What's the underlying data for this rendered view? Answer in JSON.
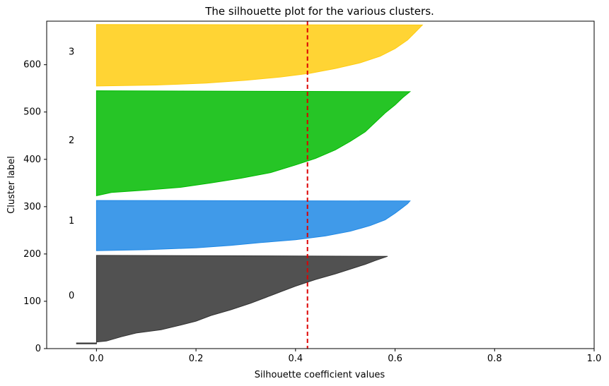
{
  "chart_data": {
    "type": "area",
    "title": "The silhouette plot for the various clusters.",
    "xlabel": "Silhouette coefficient values",
    "ylabel": "Cluster label",
    "xlim": [
      -0.1,
      1.0
    ],
    "ylim": [
      0,
      692
    ],
    "xticks": [
      0.0,
      0.2,
      0.4,
      0.6,
      0.8,
      1.0
    ],
    "xtick_labels": [
      "0.0",
      "0.2",
      "0.4",
      "0.6",
      "0.8",
      "1.0"
    ],
    "yticks": [
      0,
      100,
      200,
      300,
      400,
      500,
      600
    ],
    "ytick_labels": [
      "0",
      "100",
      "200",
      "300",
      "400",
      "500",
      "600"
    ],
    "grid": false,
    "average_silhouette": 0.424,
    "average_line_color": "#dd0000",
    "clusters": [
      {
        "label": "0",
        "color": "#333333",
        "label_x": -0.05,
        "label_y": 112,
        "y_lower": 10,
        "y_upper": 197,
        "profile": [
          [
            -0.04,
            10
          ],
          [
            -0.04,
            12
          ],
          [
            0.0,
            12
          ],
          [
            0.0,
            14
          ],
          [
            0.02,
            16
          ],
          [
            0.05,
            25
          ],
          [
            0.08,
            33
          ],
          [
            0.13,
            40
          ],
          [
            0.17,
            50
          ],
          [
            0.2,
            58
          ],
          [
            0.23,
            70
          ],
          [
            0.27,
            82
          ],
          [
            0.31,
            96
          ],
          [
            0.34,
            108
          ],
          [
            0.37,
            120
          ],
          [
            0.4,
            132
          ],
          [
            0.44,
            146
          ],
          [
            0.48,
            158
          ],
          [
            0.51,
            168
          ],
          [
            0.54,
            178
          ],
          [
            0.56,
            186
          ],
          [
            0.585,
            195
          ]
        ]
      },
      {
        "label": "1",
        "color": "#1f88e5",
        "label_x": -0.05,
        "label_y": 270,
        "y_lower": 207,
        "y_upper": 313,
        "profile": [
          [
            0.0,
            207
          ],
          [
            0.1,
            209
          ],
          [
            0.2,
            213
          ],
          [
            0.27,
            218
          ],
          [
            0.33,
            224
          ],
          [
            0.4,
            230
          ],
          [
            0.46,
            238
          ],
          [
            0.51,
            248
          ],
          [
            0.55,
            260
          ],
          [
            0.58,
            272
          ],
          [
            0.6,
            286
          ],
          [
            0.615,
            298
          ],
          [
            0.625,
            306
          ],
          [
            0.63,
            312
          ]
        ]
      },
      {
        "label": "2",
        "color": "#00bb00",
        "label_x": -0.05,
        "label_y": 440,
        "y_lower": 323,
        "y_upper": 545,
        "profile": [
          [
            0.0,
            323
          ],
          [
            0.03,
            330
          ],
          [
            0.1,
            335
          ],
          [
            0.17,
            341
          ],
          [
            0.23,
            350
          ],
          [
            0.29,
            360
          ],
          [
            0.35,
            372
          ],
          [
            0.4,
            388
          ],
          [
            0.44,
            402
          ],
          [
            0.48,
            420
          ],
          [
            0.51,
            438
          ],
          [
            0.54,
            458
          ],
          [
            0.56,
            478
          ],
          [
            0.58,
            498
          ],
          [
            0.6,
            515
          ],
          [
            0.615,
            530
          ],
          [
            0.63,
            543
          ]
        ]
      },
      {
        "label": "3",
        "color": "#ffcc11",
        "label_x": -0.05,
        "label_y": 627,
        "y_lower": 555,
        "y_upper": 685,
        "profile": [
          [
            0.0,
            555
          ],
          [
            0.12,
            557
          ],
          [
            0.22,
            561
          ],
          [
            0.3,
            567
          ],
          [
            0.37,
            574
          ],
          [
            0.43,
            582
          ],
          [
            0.48,
            592
          ],
          [
            0.53,
            604
          ],
          [
            0.57,
            618
          ],
          [
            0.6,
            634
          ],
          [
            0.625,
            652
          ],
          [
            0.64,
            668
          ],
          [
            0.655,
            684
          ]
        ]
      }
    ]
  }
}
